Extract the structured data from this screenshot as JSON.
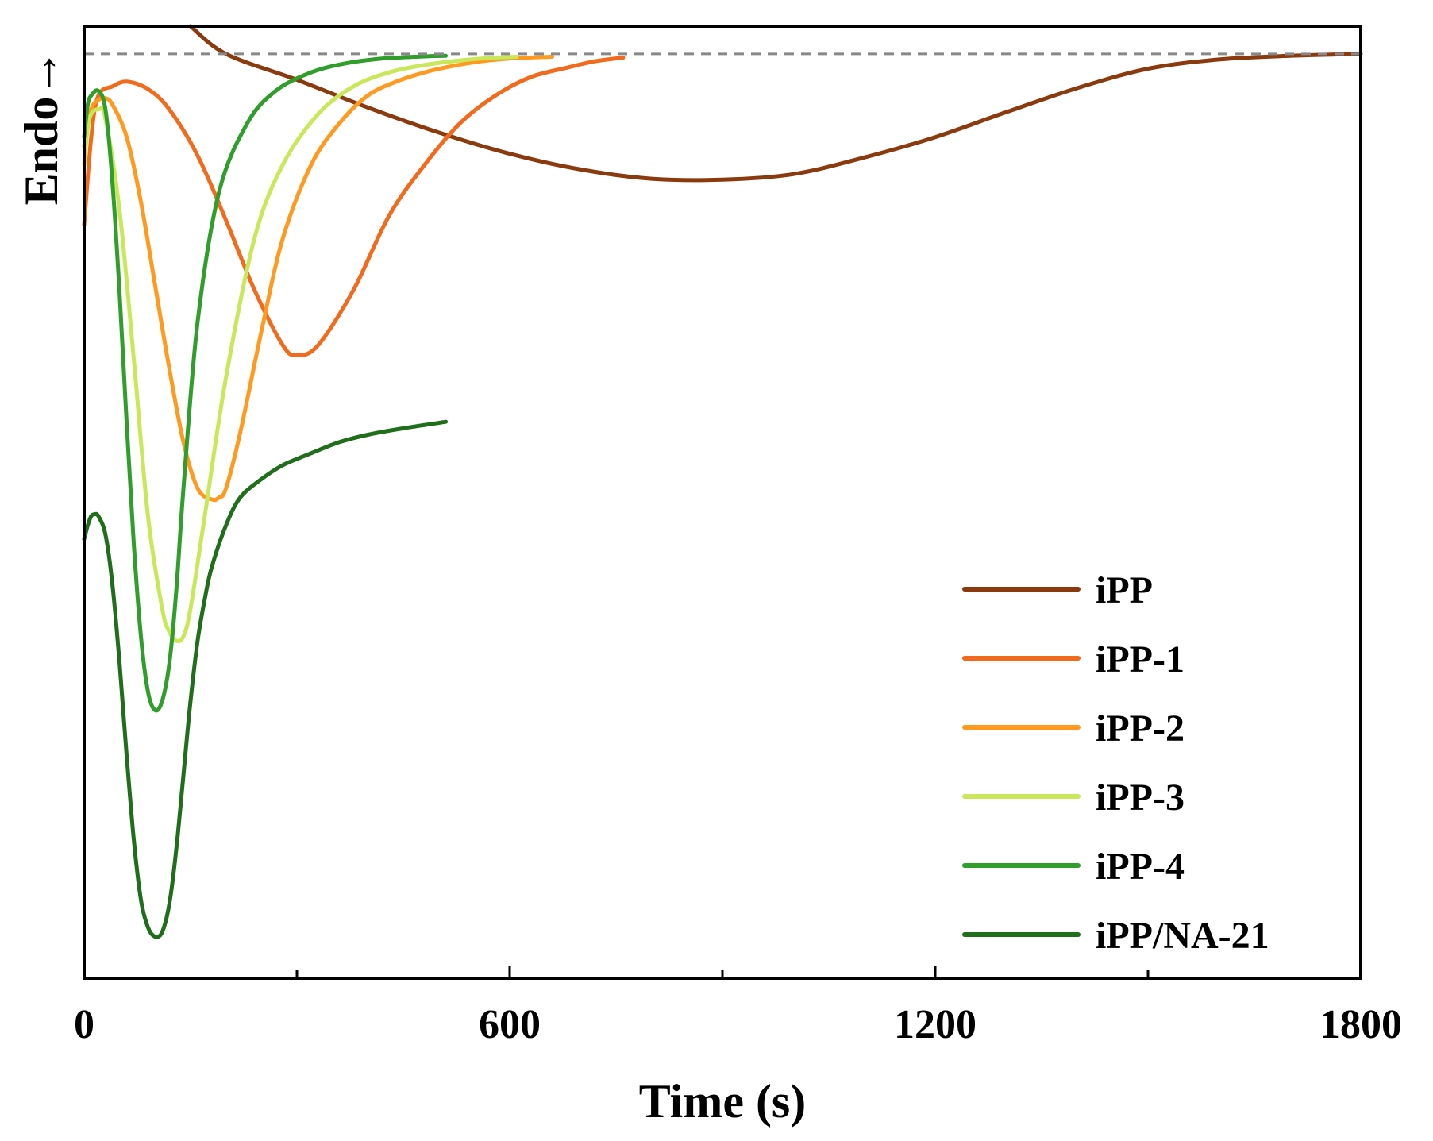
{
  "chart_data": {
    "type": "line",
    "title": "",
    "xlabel": "Time (s)",
    "ylabel": "Endo→",
    "xlim": [
      0,
      1800
    ],
    "ylim": [
      -1.0,
      0.03
    ],
    "xticks": [
      0,
      600,
      1200,
      1800
    ],
    "xtick_labels": [
      "0",
      "600",
      "1200",
      "1800"
    ],
    "baseline": 0,
    "grid": false,
    "legend_position": "bottom-right",
    "series": [
      {
        "name": "iPP",
        "color": "#8B3A0E",
        "x": [
          150,
          200,
          300,
          400,
          500,
          600,
          700,
          800,
          900,
          1000,
          1100,
          1200,
          1300,
          1400,
          1500,
          1600,
          1700,
          1800
        ],
        "y": [
          0.03,
          0.0,
          -0.028,
          -0.058,
          -0.085,
          -0.108,
          -0.125,
          -0.135,
          -0.136,
          -0.13,
          -0.112,
          -0.09,
          -0.063,
          -0.037,
          -0.016,
          -0.006,
          -0.002,
          0.0
        ]
      },
      {
        "name": "iPP-1",
        "color": "#F26B1D",
        "x": [
          0,
          10,
          20,
          40,
          60,
          90,
          120,
          160,
          200,
          240,
          280,
          300,
          330,
          380,
          430,
          480,
          530,
          580,
          630,
          680,
          720,
          760
        ],
        "y": [
          -0.185,
          -0.09,
          -0.045,
          -0.035,
          -0.03,
          -0.038,
          -0.06,
          -0.11,
          -0.18,
          -0.255,
          -0.315,
          -0.326,
          -0.315,
          -0.255,
          -0.175,
          -0.12,
          -0.075,
          -0.045,
          -0.025,
          -0.015,
          -0.008,
          -0.004
        ]
      },
      {
        "name": "iPP-2",
        "color": "#FF9A1F",
        "x": [
          0,
          10,
          20,
          30,
          40,
          60,
          80,
          100,
          120,
          140,
          160,
          180,
          190,
          200,
          220,
          250,
          280,
          320,
          360,
          400,
          440,
          480,
          520,
          560,
          600,
          660
        ],
        "y": [
          -0.1,
          -0.06,
          -0.05,
          -0.048,
          -0.055,
          -0.09,
          -0.16,
          -0.25,
          -0.34,
          -0.42,
          -0.47,
          -0.482,
          -0.48,
          -0.47,
          -0.41,
          -0.3,
          -0.2,
          -0.12,
          -0.075,
          -0.045,
          -0.03,
          -0.02,
          -0.013,
          -0.008,
          -0.005,
          -0.003
        ]
      },
      {
        "name": "iPP-3",
        "color": "#C8E85A",
        "x": [
          0,
          5,
          10,
          20,
          30,
          50,
          70,
          90,
          110,
          120,
          130,
          140,
          150,
          170,
          200,
          240,
          280,
          330,
          380,
          430,
          480,
          530,
          580,
          610
        ],
        "y": [
          -0.12,
          -0.08,
          -0.065,
          -0.06,
          -0.07,
          -0.17,
          -0.33,
          -0.5,
          -0.6,
          -0.625,
          -0.635,
          -0.63,
          -0.6,
          -0.5,
          -0.35,
          -0.2,
          -0.12,
          -0.065,
          -0.035,
          -0.02,
          -0.012,
          -0.007,
          -0.004,
          -0.003
        ]
      },
      {
        "name": "iPP-4",
        "color": "#2F9E2A",
        "x": [
          0,
          5,
          10,
          20,
          30,
          40,
          50,
          60,
          70,
          80,
          90,
          100,
          110,
          120,
          130,
          140,
          160,
          190,
          230,
          270,
          320,
          370,
          420,
          470,
          510
        ],
        "y": [
          -0.09,
          -0.055,
          -0.045,
          -0.04,
          -0.06,
          -0.14,
          -0.26,
          -0.4,
          -0.53,
          -0.63,
          -0.69,
          -0.71,
          -0.7,
          -0.66,
          -0.58,
          -0.47,
          -0.29,
          -0.15,
          -0.075,
          -0.04,
          -0.02,
          -0.01,
          -0.005,
          -0.003,
          -0.002
        ]
      },
      {
        "name": "iPP/NA-21",
        "color": "#1F6E1A",
        "x": [
          0,
          5,
          10,
          15,
          20,
          30,
          40,
          50,
          60,
          70,
          80,
          90,
          100,
          110,
          120,
          130,
          140,
          150,
          160,
          170,
          180,
          200,
          220,
          250,
          280,
          320,
          360,
          400,
          450,
          510
        ],
        "y": [
          -0.525,
          -0.51,
          -0.5,
          -0.498,
          -0.5,
          -0.52,
          -0.575,
          -0.66,
          -0.76,
          -0.85,
          -0.915,
          -0.945,
          -0.955,
          -0.95,
          -0.92,
          -0.86,
          -0.78,
          -0.7,
          -0.635,
          -0.59,
          -0.555,
          -0.51,
          -0.48,
          -0.46,
          -0.445,
          -0.432,
          -0.42,
          -0.412,
          -0.405,
          -0.398
        ]
      }
    ]
  }
}
